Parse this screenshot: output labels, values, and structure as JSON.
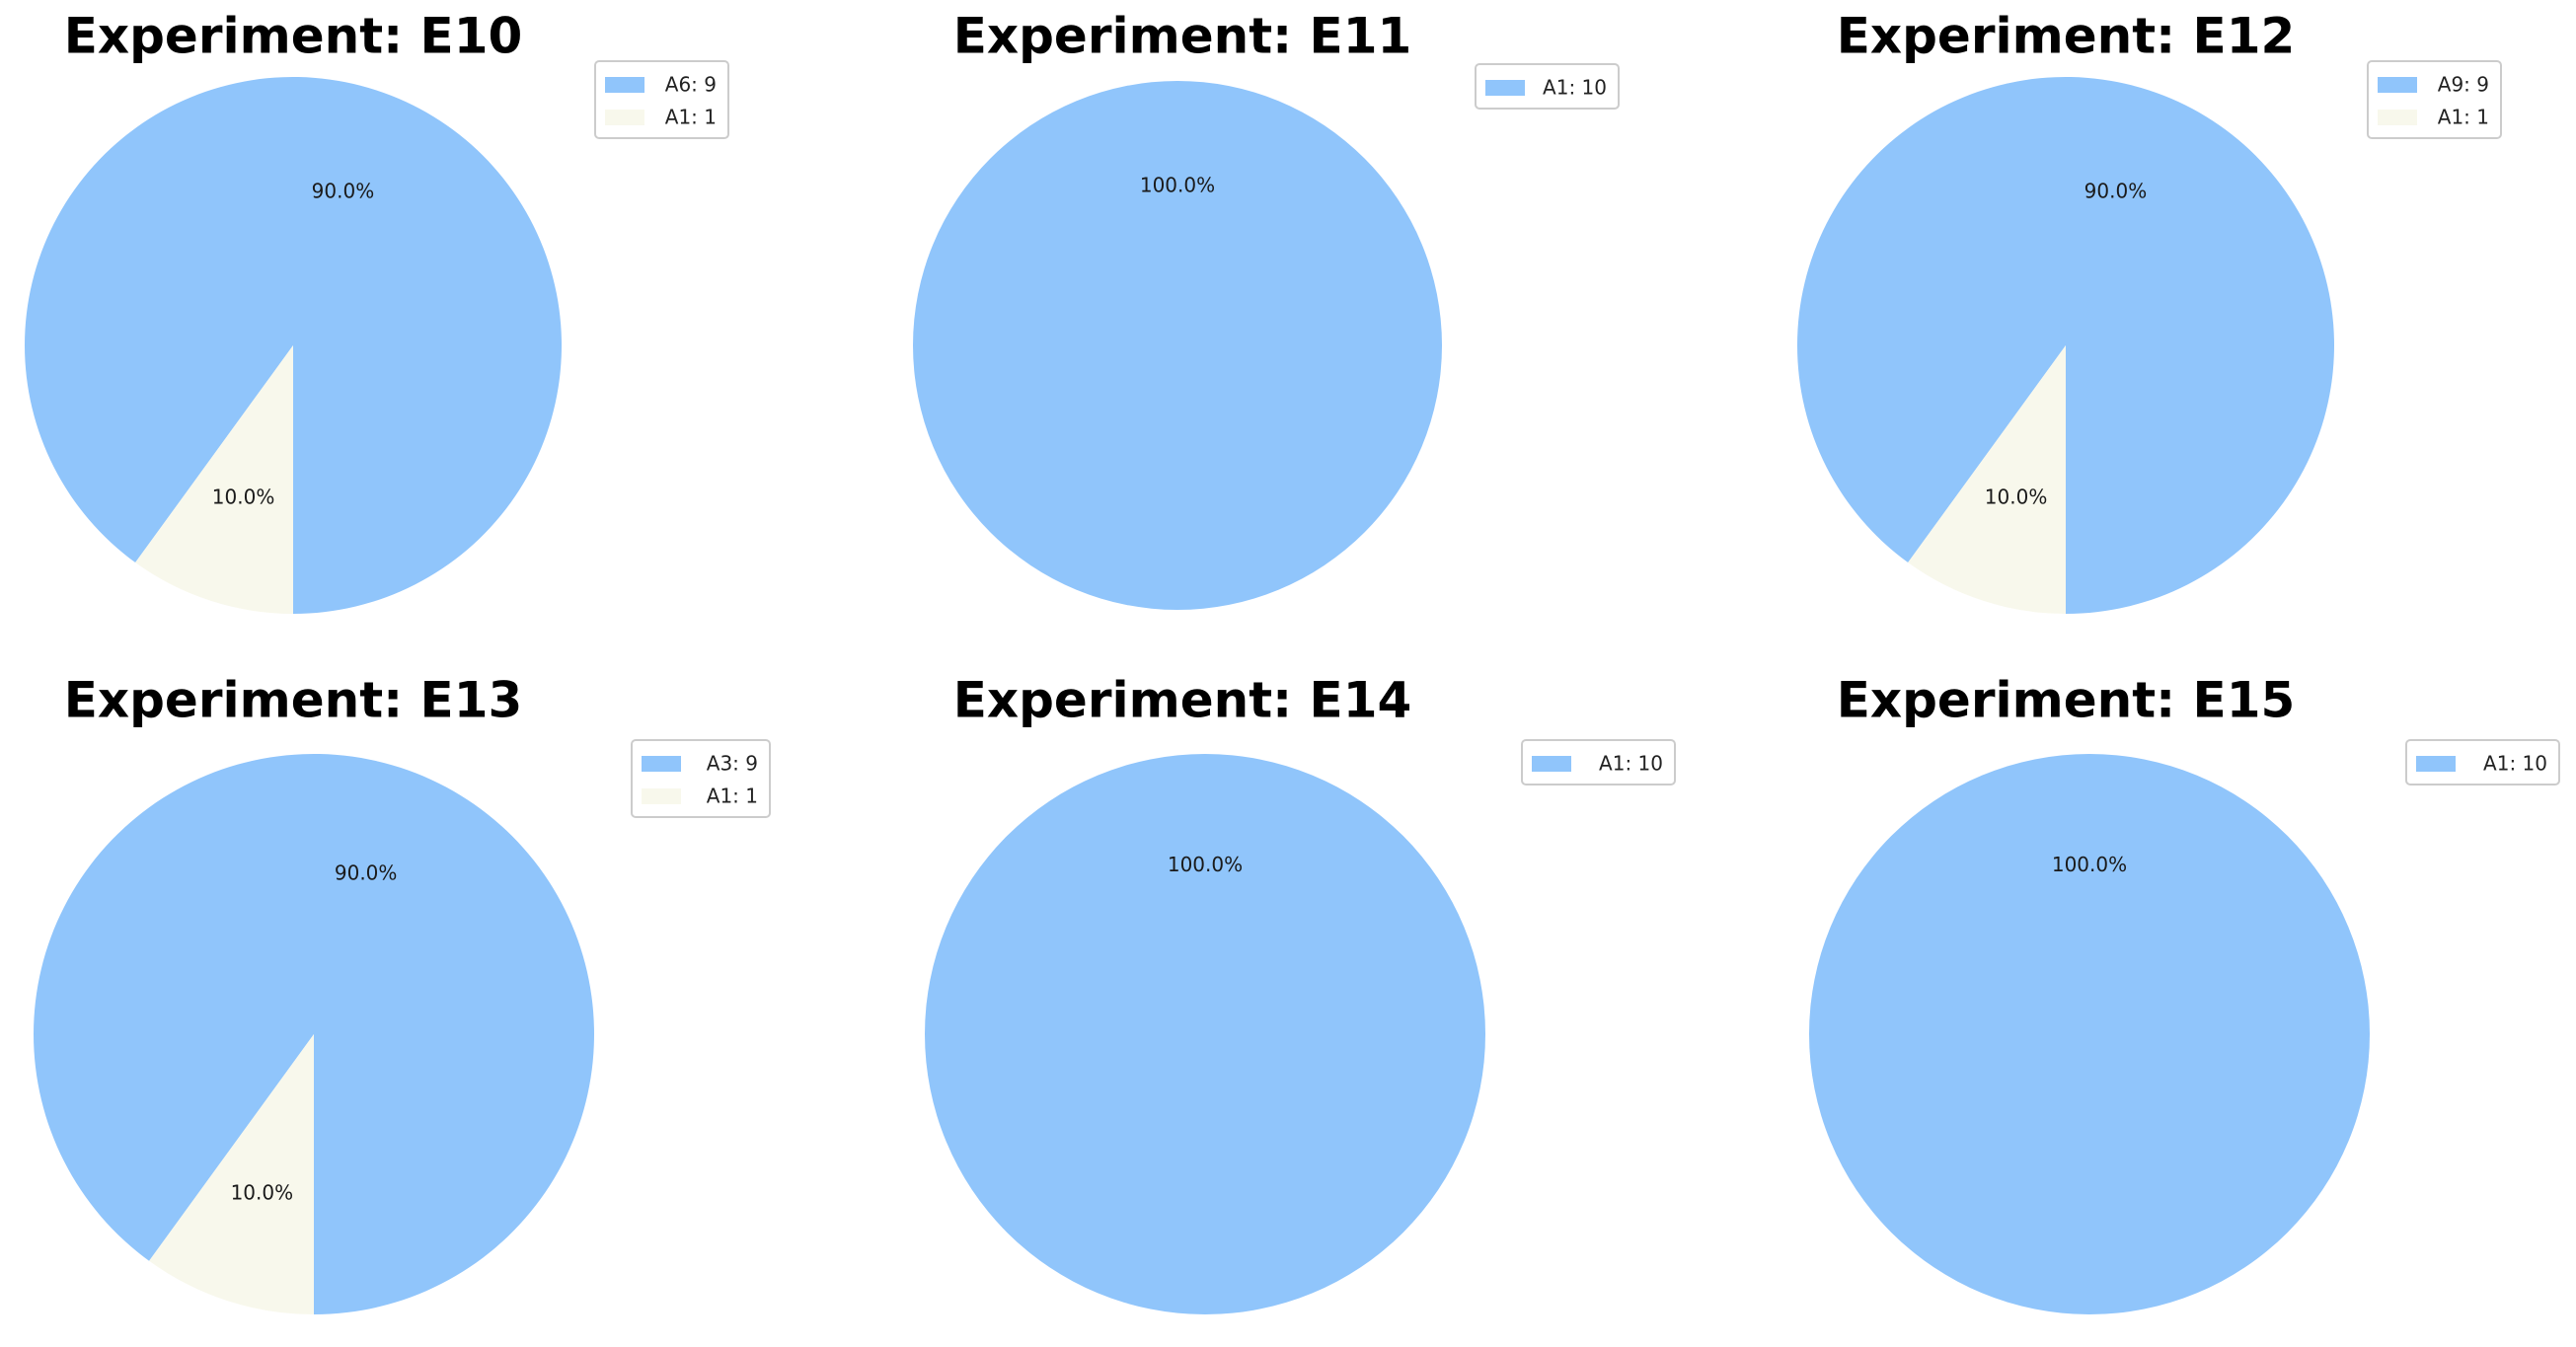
{
  "chart_data": [
    {
      "type": "pie",
      "title": "Experiment: E10",
      "series": [
        {
          "name": "A6: 9",
          "value": 9,
          "label": "90.0%"
        },
        {
          "name": "A1: 1",
          "value": 1,
          "label": "10.0%"
        }
      ],
      "legend": "top-right"
    },
    {
      "type": "pie",
      "title": "Experiment: E11",
      "series": [
        {
          "name": "A1: 10",
          "value": 10,
          "label": "100.0%"
        }
      ],
      "legend": "top-right"
    },
    {
      "type": "pie",
      "title": "Experiment: E12",
      "series": [
        {
          "name": "A9: 9",
          "value": 9,
          "label": "90.0%"
        },
        {
          "name": "A1: 1",
          "value": 1,
          "label": "10.0%"
        }
      ],
      "legend": "top-right"
    },
    {
      "type": "pie",
      "title": "Experiment: E13",
      "series": [
        {
          "name": "A3: 9",
          "value": 9,
          "label": "90.0%"
        },
        {
          "name": "A1: 1",
          "value": 1,
          "label": "10.0%"
        }
      ],
      "legend": "top-right"
    },
    {
      "type": "pie",
      "title": "Experiment: E14",
      "series": [
        {
          "name": "A1: 10",
          "value": 10,
          "label": "100.0%"
        }
      ],
      "legend": "top-right"
    },
    {
      "type": "pie",
      "title": "Experiment: E15",
      "series": [
        {
          "name": "A1: 10",
          "value": 10,
          "label": "100.0%"
        }
      ],
      "legend": "top-right"
    }
  ],
  "colors": {
    "primary_slice": "#90c5fb",
    "secondary_slice": "#f8f8ec",
    "background": "#ffffff"
  }
}
